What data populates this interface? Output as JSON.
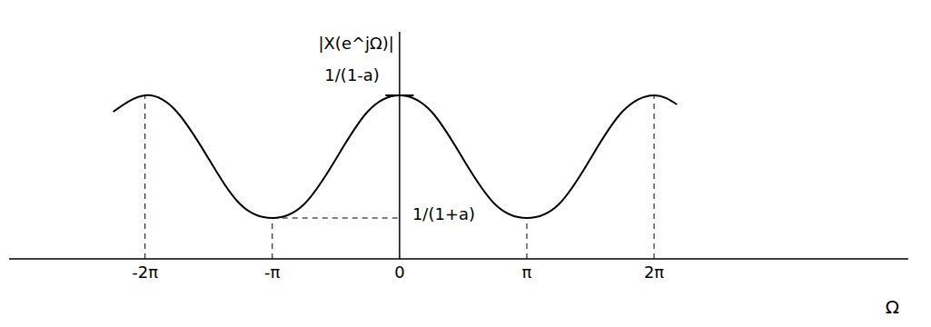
{
  "chart_data": {
    "type": "line",
    "x_label": "Ω",
    "y_label": "|X(e^jΩ)|",
    "x": [
      -7.07,
      -6.283,
      -5.5,
      -4.71,
      -3.93,
      -3.142,
      -2.36,
      -1.57,
      -0.79,
      0,
      0.79,
      1.57,
      2.36,
      3.142,
      3.93,
      4.71,
      5.5,
      6.283,
      6.85
    ],
    "values": [
      1.62,
      1.8,
      1.62,
      1.1,
      0.6,
      0.45,
      0.6,
      1.1,
      1.62,
      1.8,
      1.62,
      1.1,
      0.6,
      0.45,
      0.6,
      1.1,
      1.62,
      1.8,
      1.7
    ],
    "color": "#000000",
    "xlim": [
      -9.64,
      12.56
    ],
    "ylim": [
      0,
      2.5
    ],
    "xticks": [
      {
        "value": -6.283,
        "label": "-2π"
      },
      {
        "value": -3.142,
        "label": "-π"
      },
      0,
      {
        "value": 3.142,
        "label": "π"
      },
      {
        "value": 6.283,
        "label": "2π"
      }
    ],
    "yticks": [
      {
        "value": 1.8,
        "label": "1/(1-a)"
      },
      {
        "value": 0.45,
        "label": "1/(1+a)"
      }
    ],
    "grid": false
  }
}
